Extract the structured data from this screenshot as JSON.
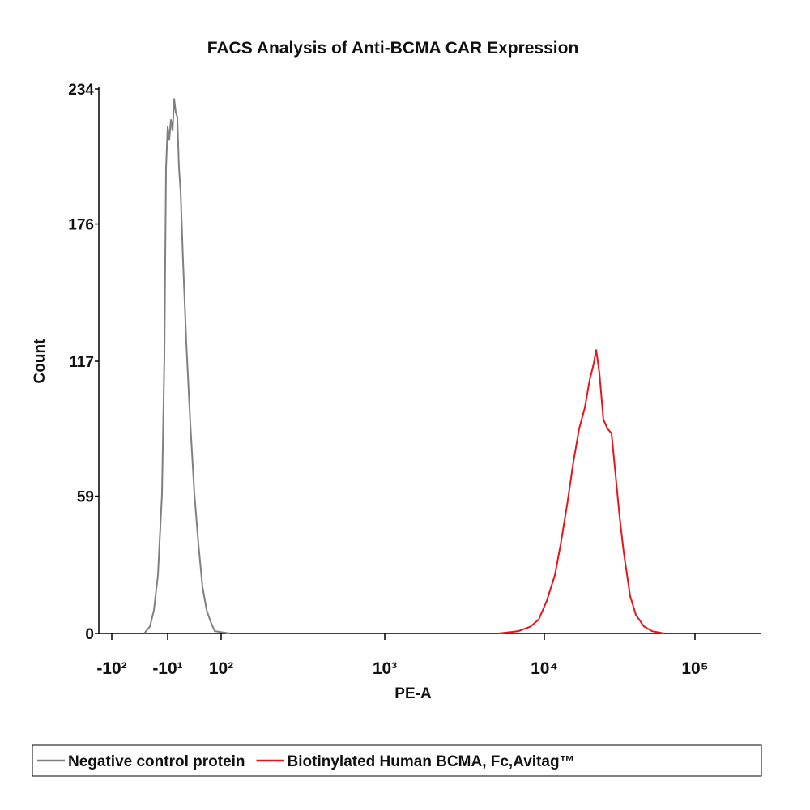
{
  "chart_data": {
    "type": "line",
    "title": "FACS Analysis of Anti-BCMA CAR Expression",
    "x_label": "PE-A",
    "y_label": "Count",
    "x_scale": "biexponential",
    "xlim": [
      -165,
      276000
    ],
    "xticks": [
      {
        "value": -100,
        "label": "-10²"
      },
      {
        "value": -10,
        "label": "-10¹"
      },
      {
        "value": 100,
        "label": "10²"
      },
      {
        "value": 1000,
        "label": "10³"
      },
      {
        "value": 10000,
        "label": "10⁴"
      },
      {
        "value": 100000,
        "label": "10⁵"
      }
    ],
    "ylim": [
      0,
      234
    ],
    "yticks": [
      0,
      59,
      117,
      176,
      234
    ],
    "legend": "bottom",
    "series": [
      {
        "name": "Negative control protein",
        "color": "#808080",
        "x": [
          -28.5,
          -22.6,
          -19.1,
          -16.0,
          -13.3,
          -11.8,
          -10.9,
          -10.0,
          -8.4,
          -6.9,
          -5.5,
          -4.2,
          -3.0,
          -1.8,
          -0.6,
          0.6,
          2.4,
          4.9,
          8.4,
          12.7,
          18.1,
          25.0,
          34.2,
          46.3,
          62.5,
          112.9
        ],
        "values": [
          0,
          3,
          10,
          25,
          60,
          120,
          200,
          218,
          212,
          221,
          216,
          230,
          224,
          222,
          200,
          190,
          160,
          125,
          90,
          60,
          38,
          20,
          10,
          5,
          1,
          0
        ]
      },
      {
        "name": "Biotinylated Human BCMA, Fc,Avitag™",
        "color": "#e8141c",
        "x": [
          5140,
          6890,
          8210,
          9230,
          10380,
          11750,
          12810,
          14150,
          15620,
          17030,
          18570,
          20000,
          21280,
          22080,
          23210,
          24670,
          26250,
          27930,
          29710,
          31620,
          33640,
          37140,
          40510,
          45820,
          51860,
          62450
        ],
        "values": [
          0,
          1,
          3,
          6,
          14,
          25,
          38,
          55,
          74,
          88,
          97,
          109,
          116,
          122,
          112,
          92,
          88,
          86,
          68,
          50,
          35,
          16,
          8,
          3,
          1,
          0
        ]
      }
    ]
  }
}
